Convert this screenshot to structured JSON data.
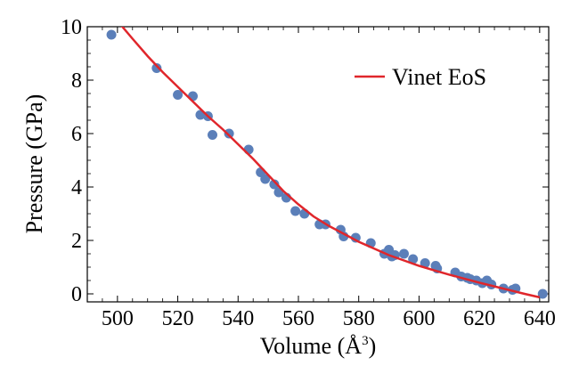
{
  "chart_data": {
    "type": "scatter",
    "title": "",
    "xlabel": "Volume (Å",
    "xlabel_sup": "3",
    "xlabel_close": ")",
    "ylabel": "Pressure (GPa)",
    "xlim": [
      490,
      643
    ],
    "ylim": [
      -0.3,
      10
    ],
    "xticks": [
      500,
      520,
      540,
      560,
      580,
      600,
      620,
      640
    ],
    "yticks": [
      0,
      2,
      4,
      6,
      8,
      10
    ],
    "grid": false,
    "legend_position": "top-right",
    "series": [
      {
        "kind": "points",
        "color": "#5b7fb9",
        "x": [
          498,
          513,
          520,
          525,
          527.5,
          530,
          531.5,
          537,
          543.5,
          547.5,
          549,
          552,
          553.5,
          556,
          559,
          562,
          567,
          569,
          574,
          575,
          579,
          584,
          588.5,
          590,
          591,
          592,
          595,
          598,
          602,
          605.5,
          606,
          612,
          614,
          616,
          617,
          619,
          621,
          622.5,
          624,
          628,
          631,
          632,
          641
        ],
        "y": [
          9.7,
          8.45,
          7.45,
          7.4,
          6.7,
          6.65,
          5.95,
          6.0,
          5.4,
          4.55,
          4.3,
          4.1,
          3.8,
          3.6,
          3.1,
          3.0,
          2.6,
          2.6,
          2.4,
          2.15,
          2.1,
          1.9,
          1.5,
          1.65,
          1.4,
          1.45,
          1.5,
          1.3,
          1.15,
          1.05,
          0.95,
          0.8,
          0.65,
          0.6,
          0.55,
          0.5,
          0.4,
          0.5,
          0.35,
          0.2,
          0.15,
          0.2,
          0.0
        ]
      },
      {
        "kind": "line",
        "name": "Vinet EoS",
        "color": "#e0262b",
        "x": [
          499,
          505,
          510,
          515,
          520,
          525,
          530,
          535,
          540,
          545,
          550,
          555,
          560,
          565,
          570,
          575,
          580,
          585,
          590,
          595,
          600,
          605,
          610,
          615,
          620,
          625,
          630,
          635,
          640
        ],
        "y": [
          10.35,
          9.55,
          8.9,
          8.3,
          7.75,
          7.2,
          6.65,
          6.15,
          5.6,
          5.05,
          4.45,
          3.85,
          3.35,
          2.9,
          2.55,
          2.25,
          1.95,
          1.7,
          1.45,
          1.25,
          1.05,
          0.88,
          0.72,
          0.57,
          0.42,
          0.28,
          0.14,
          0.0,
          -0.13
        ]
      }
    ]
  }
}
